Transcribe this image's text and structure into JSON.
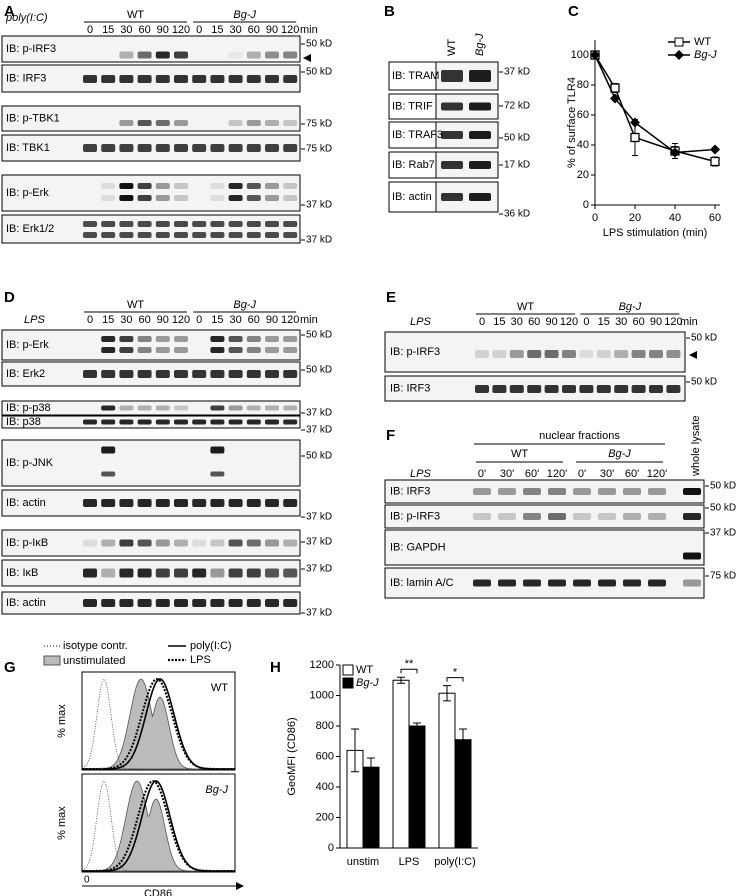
{
  "panels": {
    "a": {
      "label": "A",
      "treatment": "poly(I:C)",
      "groups": [
        "WT",
        "Bg-J"
      ],
      "timepoints": [
        "0",
        "15",
        "30",
        "60",
        "90",
        "120"
      ],
      "unit": "min",
      "blots": [
        {
          "label": "IB: p-IRF3",
          "markers": [
            "50 kD"
          ]
        },
        {
          "label": "IB: IRF3",
          "markers": [
            "50 kD"
          ]
        },
        {
          "label": "IB: p-TBK1",
          "markers": [
            "75 kD"
          ]
        },
        {
          "label": "IB: TBK1",
          "markers": [
            "75 kD"
          ]
        },
        {
          "label": "IB: p-Erk",
          "markers": [
            "37 kD"
          ]
        },
        {
          "label": "IB: Erk1/2",
          "markers": [
            "37 kD"
          ]
        }
      ]
    },
    "b": {
      "label": "B",
      "groups": [
        "WT",
        "Bg-J"
      ],
      "blots": [
        {
          "label": "IB: TRAM",
          "markers": [
            "37 kD"
          ]
        },
        {
          "label": "IB: TRIF",
          "markers": [
            "72 kD"
          ]
        },
        {
          "label": "IB: TRAF3",
          "markers": [
            "50 kD"
          ]
        },
        {
          "label": "IB: Rab7",
          "markers": [
            "17 kD"
          ]
        },
        {
          "label": "IB: actin",
          "markers": [
            "36 kD"
          ]
        }
      ]
    },
    "d": {
      "label": "D",
      "treatment": "LPS",
      "groups": [
        "WT",
        "Bg-J"
      ],
      "timepoints": [
        "0",
        "15",
        "30",
        "60",
        "90",
        "120"
      ],
      "unit": "min",
      "blots": [
        {
          "label": "IB: p-Erk",
          "markers": [
            "50 kD"
          ]
        },
        {
          "label": "IB: Erk2",
          "markers": [
            "50 kD"
          ]
        },
        {
          "label": "IB: p-p38",
          "markers": [
            "37 kD"
          ]
        },
        {
          "label": "IB: p38",
          "markers": [
            "37 kD"
          ]
        },
        {
          "label": "IB: p-JNK",
          "markers": [
            "50 kD"
          ]
        },
        {
          "label": "IB: actin",
          "markers": [
            "37 kD"
          ]
        },
        {
          "label": "IB: p-IκB",
          "markers": [
            "37 kD"
          ]
        },
        {
          "label": "IB: IκB",
          "markers": [
            "37 kD"
          ]
        },
        {
          "label": "IB: actin",
          "markers": [
            "37 kD"
          ]
        }
      ]
    },
    "e": {
      "label": "E",
      "treatment": "LPS",
      "groups": [
        "WT",
        "Bg-J"
      ],
      "timepoints": [
        "0",
        "15",
        "30",
        "60",
        "90",
        "120"
      ],
      "unit": "min",
      "blots": [
        {
          "label": "IB: p-IRF3",
          "markers": [
            "50 kD"
          ]
        },
        {
          "label": "IB: IRF3",
          "markers": [
            "50 kD"
          ]
        }
      ]
    },
    "f": {
      "label": "F",
      "title": "nuclear fractions",
      "treatment": "LPS",
      "groups": [
        "WT",
        "Bg-J"
      ],
      "timepoints": [
        "0'",
        "30'",
        "60'",
        "120'"
      ],
      "extra_lane": "whole lysate",
      "blots": [
        {
          "label": "IB: IRF3",
          "markers": [
            "50 kD"
          ]
        },
        {
          "label": "IB: p-IRF3",
          "markers": [
            "50 kD"
          ]
        },
        {
          "label": "IB: GAPDH",
          "markers": [
            "37 kD"
          ]
        },
        {
          "label": "IB: lamin A/C",
          "markers": [
            "75 kD"
          ]
        }
      ]
    },
    "g": {
      "label": "G",
      "legend": [
        "isotype contr.",
        "unstimulated",
        "poly(I:C)",
        "LPS"
      ],
      "rows": [
        "WT",
        "Bg-J"
      ],
      "y_label": "% max",
      "x_label": "CD86",
      "x_tick": "0"
    }
  },
  "chart_data": [
    {
      "label": "C",
      "type": "line",
      "x_label": "LPS stimulation (min)",
      "y_label": "% of surface TLR4",
      "x": [
        0,
        10,
        20,
        40,
        60
      ],
      "series": [
        {
          "name": "WT",
          "color": "#000000",
          "values": [
            100,
            78,
            45,
            36,
            29
          ],
          "errors": [
            0,
            3,
            12,
            5,
            3
          ]
        },
        {
          "name": "Bg-J",
          "color": "#000000",
          "values": [
            100,
            71,
            55,
            35,
            37
          ],
          "errors": [
            0,
            0,
            0,
            4,
            0
          ]
        }
      ],
      "xlim": [
        0,
        60
      ],
      "xticks": [
        0,
        20,
        40,
        60
      ],
      "ylim": [
        0,
        110
      ],
      "yticks": [
        0,
        20,
        40,
        60,
        80,
        100
      ],
      "legend": "upper right"
    },
    {
      "label": "H",
      "type": "bar",
      "y_label": "GeoMFI (CD86)",
      "categories": [
        "unstim",
        "LPS",
        "poly(I:C)"
      ],
      "series": [
        {
          "name": "WT",
          "color": "#ffffff",
          "values": [
            640,
            1100,
            1015
          ],
          "errors": [
            140,
            20,
            50
          ]
        },
        {
          "name": "Bg-J",
          "color": "#000000",
          "values": [
            530,
            800,
            710
          ],
          "errors": [
            60,
            20,
            70
          ]
        }
      ],
      "significance": [
        null,
        "**",
        "*"
      ],
      "ylim": [
        0,
        1200
      ],
      "yticks": [
        0,
        200,
        400,
        600,
        800,
        1000,
        1200
      ],
      "legend": "upper left"
    }
  ]
}
